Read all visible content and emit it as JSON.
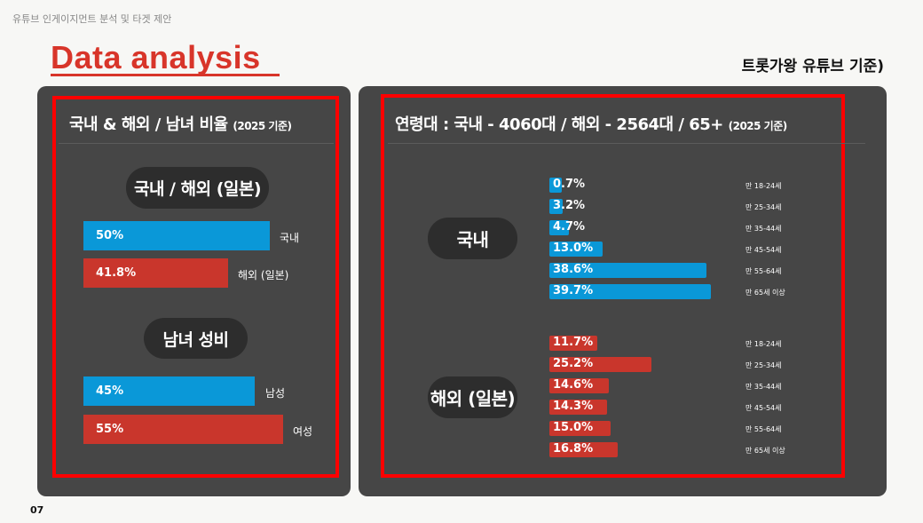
{
  "header": {
    "breadcrumb": "유튜브 인게이지먼트 분석 및 타겟 제안",
    "title": "Data analysis",
    "subtitle": "트롯가왕 유튜브 기준)",
    "page_number": "07"
  },
  "left_panel": {
    "heading": "국내 & 해외 / 남녀 비율",
    "heading_note": "(2025 기준)",
    "region_title": "국내 / 해외 (일본)",
    "region_bars": [
      {
        "value": "50%",
        "label": "국내",
        "color": "#0a98d8"
      },
      {
        "value": "41.8%",
        "label": "해외 (일본)",
        "color": "#c9362c"
      }
    ],
    "gender_title": "남녀 성비",
    "gender_bars": [
      {
        "value": "45%",
        "label": "남성",
        "color": "#0a98d8"
      },
      {
        "value": "55%",
        "label": "여성",
        "color": "#c9362c"
      }
    ]
  },
  "right_panel": {
    "heading": "연령대 : 국내 - 4060대 / 해외 - 2564대 / 65+",
    "heading_note": "(2025 기준)",
    "domestic": {
      "title": "국내",
      "color": "#0a98d8",
      "bars": [
        {
          "value": "0.7%",
          "pct": 0.7,
          "label": "만 18-24세"
        },
        {
          "value": "3.2%",
          "pct": 3.2,
          "label": "만 25-34세"
        },
        {
          "value": "4.7%",
          "pct": 4.7,
          "label": "만 35-44세"
        },
        {
          "value": "13.0%",
          "pct": 13.0,
          "label": "만 45-54세"
        },
        {
          "value": "38.6%",
          "pct": 38.6,
          "label": "만 55-64세"
        },
        {
          "value": "39.7%",
          "pct": 39.7,
          "label": "만 65세 이상"
        }
      ]
    },
    "overseas": {
      "title": "해외 (일본)",
      "color": "#c9362c",
      "bars": [
        {
          "value": "11.7%",
          "pct": 11.7,
          "label": "만 18-24세"
        },
        {
          "value": "25.2%",
          "pct": 25.2,
          "label": "만 25-34세"
        },
        {
          "value": "14.6%",
          "pct": 14.6,
          "label": "만 35-44세"
        },
        {
          "value": "14.3%",
          "pct": 14.3,
          "label": "만 45-54세"
        },
        {
          "value": "15.0%",
          "pct": 15.0,
          "label": "만 55-64세"
        },
        {
          "value": "16.8%",
          "pct": 16.8,
          "label": "만 65세 이상"
        }
      ]
    }
  }
}
